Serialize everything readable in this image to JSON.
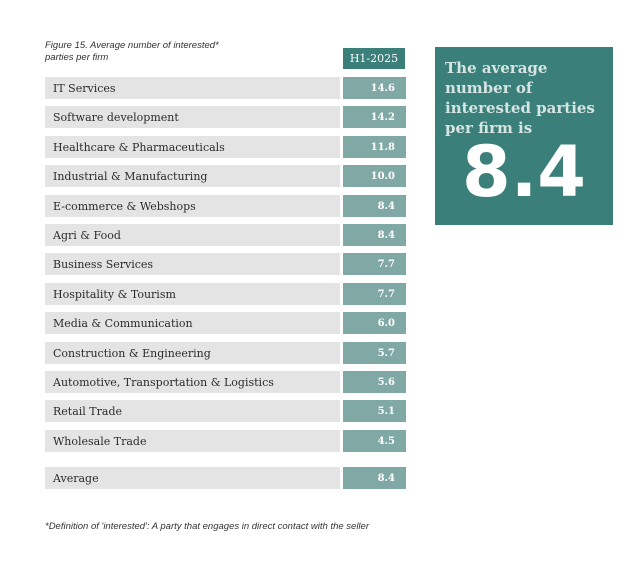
{
  "caption": "Figure 15. Average number of interested* parties per firm",
  "column_header": "H1-2025",
  "callout": {
    "text": "The average number of interested parties per firm is",
    "value": "8.4"
  },
  "footnote": "*Definition of 'interested': A party that engages in direct contact with the seller",
  "colors": {
    "header": "#3a7f7a",
    "value_cell": "#80a8a5",
    "label_cell": "#e3e4e3"
  },
  "chart_data": {
    "type": "table",
    "title": "Figure 15. Average number of interested* parties per firm",
    "columns": [
      "",
      "H1-2025"
    ],
    "rows": [
      {
        "label": "IT Services",
        "value": "14.6"
      },
      {
        "label": "Software development",
        "value": "14.2"
      },
      {
        "label": "Healthcare & Pharmaceuticals",
        "value": "11.8"
      },
      {
        "label": "Industrial & Manufacturing",
        "value": "10.0"
      },
      {
        "label": "E-commerce & Webshops",
        "value": "8.4"
      },
      {
        "label": "Agri & Food",
        "value": "8.4"
      },
      {
        "label": "Business Services",
        "value": "7.7"
      },
      {
        "label": "Hospitality & Tourism",
        "value": "7.7"
      },
      {
        "label": "Media & Communication",
        "value": "6.0"
      },
      {
        "label": "Construction & Engineering",
        "value": "5.7"
      },
      {
        "label": "Automotive, Transportation & Logistics",
        "value": "5.6"
      },
      {
        "label": "Retail Trade",
        "value": "5.1"
      },
      {
        "label": "Wholesale Trade",
        "value": "4.5"
      }
    ],
    "summary_row": {
      "label": "Average",
      "value": "8.4"
    }
  }
}
